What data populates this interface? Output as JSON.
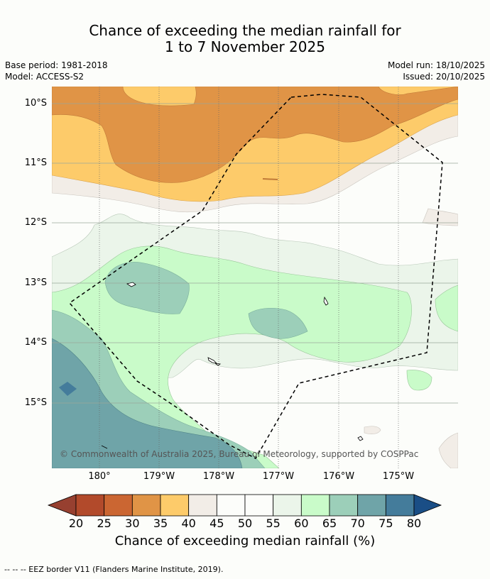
{
  "title_line1": "Chance of exceeding the median rainfall for",
  "title_line2": "1 to 7 November 2025",
  "base_period": "Base period: 1981-2018",
  "model": "Model: ACCESS-S2",
  "model_run": "Model run: 18/10/2025",
  "issued": "Issued: 20/10/2025",
  "lat_labels": [
    "10°S",
    "11°S",
    "12°S",
    "13°S",
    "14°S",
    "15°S"
  ],
  "lon_labels": [
    "180°",
    "179°W",
    "178°W",
    "177°W",
    "176°W",
    "175°W"
  ],
  "copyright": "© Commonwealth of Australia 2025, Bureau of Meteorology, supported by COSPPac",
  "colorbar": {
    "title": "Chance of exceeding median rainfall (%)",
    "ticks": [
      "20",
      "25",
      "30",
      "35",
      "40",
      "45",
      "50",
      "55",
      "60",
      "65",
      "70",
      "75",
      "80"
    ],
    "colors": [
      "#b24a2b",
      "#cb6632",
      "#e09446",
      "#fdcb6a",
      "#f2ede7",
      "#fcfdfa",
      "#fcfdfa",
      "#ebf5ea",
      "#c9fbc9",
      "#9ccfb9",
      "#6fa4a8",
      "#447c9b"
    ],
    "under_color": "#974030",
    "over_color": "#1a4e86"
  },
  "footnote": "--  --  -- EEZ border V11 (Flanders Marine Institute, 2019)."
}
